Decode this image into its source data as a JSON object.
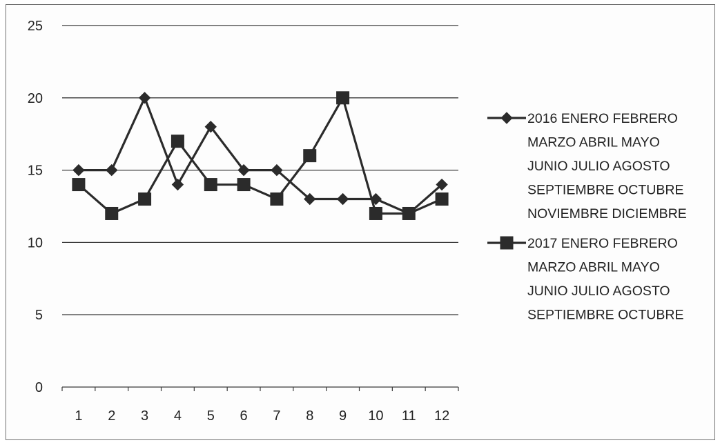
{
  "chart_data": {
    "type": "line",
    "categories": [
      "1",
      "2",
      "3",
      "4",
      "5",
      "6",
      "7",
      "8",
      "9",
      "10",
      "11",
      "12"
    ],
    "ylim": [
      0,
      25
    ],
    "yticks": [
      "0",
      "5",
      "10",
      "15",
      "20",
      "25"
    ],
    "grid": true,
    "legend_position": "right",
    "series": [
      {
        "name": "2016 ENERO FEBRERO MARZO ABRIL MAYO JUNIO JULIO AGOSTO SEPTIEMBRE OCTUBRE NOVIEMBRE DICIEMBRE",
        "legend_lines": [
          "2016 ENERO FEBRERO",
          "MARZO ABRIL MAYO",
          "JUNIO JULIO AGOSTO",
          "SEPTIEMBRE OCTUBRE",
          "NOVIEMBRE DICIEMBRE"
        ],
        "marker": "diamond",
        "color": "#2b2b2b",
        "values": [
          15,
          15,
          20,
          14,
          18,
          15,
          15,
          13,
          13,
          13,
          12,
          14
        ]
      },
      {
        "name": "2017 ENERO FEBRERO MARZO ABRIL MAYO JUNIO JULIO AGOSTO SEPTIEMBRE OCTUBRE",
        "legend_lines": [
          "2017 ENERO FEBRERO",
          "MARZO ABRIL MAYO",
          "JUNIO JULIO AGOSTO",
          "SEPTIEMBRE OCTUBRE"
        ],
        "marker": "square",
        "color": "#2b2b2b",
        "values": [
          14,
          12,
          13,
          17,
          14,
          14,
          13,
          16,
          20,
          12,
          12,
          13
        ]
      }
    ]
  }
}
